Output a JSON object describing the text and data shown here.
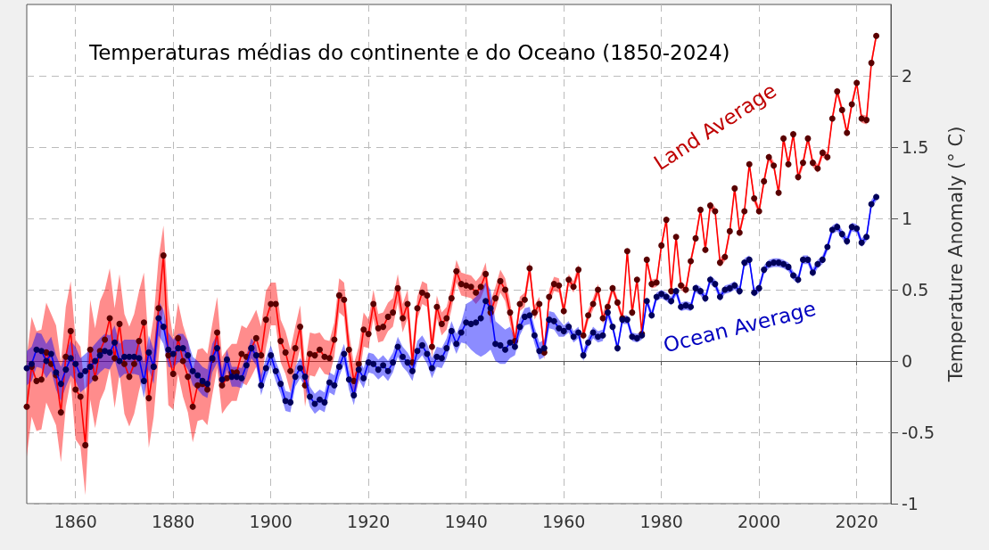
{
  "chart_data": {
    "type": "line",
    "title": "Temperaturas médias do continente e do Oceano (1850-2024)",
    "ylabel": "Temperature Anomaly (° C)",
    "x": [
      1850,
      1851,
      1852,
      1853,
      1854,
      1855,
      1856,
      1857,
      1858,
      1859,
      1860,
      1861,
      1862,
      1863,
      1864,
      1865,
      1866,
      1867,
      1868,
      1869,
      1870,
      1871,
      1872,
      1873,
      1874,
      1875,
      1876,
      1877,
      1878,
      1879,
      1880,
      1881,
      1882,
      1883,
      1884,
      1885,
      1886,
      1887,
      1888,
      1889,
      1890,
      1891,
      1892,
      1893,
      1894,
      1895,
      1896,
      1897,
      1898,
      1899,
      1900,
      1901,
      1902,
      1903,
      1904,
      1905,
      1906,
      1907,
      1908,
      1909,
      1910,
      1911,
      1912,
      1913,
      1914,
      1915,
      1916,
      1917,
      1918,
      1919,
      1920,
      1921,
      1922,
      1923,
      1924,
      1925,
      1926,
      1927,
      1928,
      1929,
      1930,
      1931,
      1932,
      1933,
      1934,
      1935,
      1936,
      1937,
      1938,
      1939,
      1940,
      1941,
      1942,
      1943,
      1944,
      1945,
      1946,
      1947,
      1948,
      1949,
      1950,
      1951,
      1952,
      1953,
      1954,
      1955,
      1956,
      1957,
      1958,
      1959,
      1960,
      1961,
      1962,
      1963,
      1964,
      1965,
      1966,
      1967,
      1968,
      1969,
      1970,
      1971,
      1972,
      1973,
      1974,
      1975,
      1976,
      1977,
      1978,
      1979,
      1980,
      1981,
      1982,
      1983,
      1984,
      1985,
      1986,
      1987,
      1988,
      1989,
      1990,
      1991,
      1992,
      1993,
      1994,
      1995,
      1996,
      1997,
      1998,
      1999,
      2000,
      2001,
      2002,
      2003,
      2004,
      2005,
      2006,
      2007,
      2008,
      2009,
      2010,
      2011,
      2012,
      2013,
      2014,
      2015,
      2016,
      2017,
      2018,
      2019,
      2020,
      2021,
      2022,
      2023,
      2024
    ],
    "series": [
      {
        "name": "Land Average",
        "color": "#ff0000",
        "values": [
          -0.32,
          -0.04,
          -0.14,
          -0.13,
          0.06,
          -0.02,
          -0.1,
          -0.36,
          0.03,
          0.21,
          -0.2,
          -0.25,
          -0.59,
          0.08,
          -0.12,
          0.07,
          0.15,
          0.3,
          0.02,
          0.26,
          -0.02,
          -0.11,
          -0.02,
          0.14,
          0.27,
          -0.26,
          -0.04,
          0.37,
          0.74,
          0.04,
          -0.09,
          0.16,
          0.0,
          -0.11,
          -0.32,
          -0.17,
          -0.16,
          -0.2,
          0.01,
          0.2,
          -0.17,
          -0.12,
          -0.08,
          -0.08,
          0.05,
          0.03,
          0.09,
          0.16,
          0.04,
          0.29,
          0.4,
          0.4,
          0.14,
          0.06,
          -0.07,
          0.09,
          0.24,
          -0.17,
          0.05,
          0.04,
          0.08,
          0.03,
          0.02,
          0.15,
          0.46,
          0.43,
          0.08,
          -0.14,
          -0.02,
          0.22,
          0.19,
          0.4,
          0.23,
          0.24,
          0.31,
          0.34,
          0.51,
          0.3,
          0.4,
          -0.01,
          0.37,
          0.48,
          0.46,
          0.1,
          0.38,
          0.26,
          0.3,
          0.44,
          0.63,
          0.54,
          0.53,
          0.52,
          0.48,
          0.52,
          0.61,
          0.34,
          0.44,
          0.56,
          0.5,
          0.34,
          0.14,
          0.4,
          0.43,
          0.65,
          0.34,
          0.4,
          0.06,
          0.45,
          0.54,
          0.53,
          0.35,
          0.57,
          0.52,
          0.64,
          0.18,
          0.32,
          0.4,
          0.5,
          0.3,
          0.38,
          0.51,
          0.41,
          0.3,
          0.77,
          0.34,
          0.57,
          0.19,
          0.71,
          0.54,
          0.55,
          0.81,
          0.99,
          0.49,
          0.87,
          0.53,
          0.5,
          0.7,
          0.86,
          1.06,
          0.78,
          1.09,
          1.05,
          0.69,
          0.73,
          0.91,
          1.21,
          0.9,
          1.05,
          1.38,
          1.14,
          1.05,
          1.26,
          1.43,
          1.37,
          1.18,
          1.56,
          1.38,
          1.59,
          1.29,
          1.39,
          1.56,
          1.39,
          1.35,
          1.46,
          1.43,
          1.7,
          1.89,
          1.76,
          1.6,
          1.8,
          1.95,
          1.7,
          1.69,
          2.09,
          2.28
        ],
        "lower": [
          -0.67,
          -0.39,
          -0.49,
          -0.48,
          -0.29,
          -0.37,
          -0.45,
          -0.71,
          -0.32,
          -0.14,
          -0.55,
          -0.6,
          -0.94,
          -0.27,
          -0.47,
          -0.28,
          -0.2,
          -0.05,
          -0.33,
          -0.09,
          -0.37,
          -0.46,
          -0.37,
          -0.21,
          -0.08,
          -0.61,
          -0.39,
          0.02,
          0.39,
          -0.31,
          -0.34,
          -0.09,
          -0.25,
          -0.36,
          -0.57,
          -0.42,
          -0.41,
          -0.45,
          -0.24,
          -0.05,
          -0.37,
          -0.32,
          -0.28,
          -0.28,
          -0.15,
          -0.17,
          -0.11,
          -0.04,
          -0.16,
          0.09,
          0.25,
          0.25,
          -0.01,
          -0.09,
          -0.22,
          -0.06,
          0.09,
          -0.32,
          -0.1,
          -0.11,
          -0.04,
          -0.09,
          -0.1,
          0.03,
          0.34,
          0.31,
          -0.04,
          -0.26,
          -0.14,
          0.1,
          0.09,
          0.3,
          0.13,
          0.14,
          0.21,
          0.24,
          0.41,
          0.2,
          0.3,
          -0.11,
          0.29,
          0.4,
          0.38,
          0.02,
          0.3,
          0.18,
          0.22,
          0.36,
          0.55,
          0.46,
          0.45,
          0.44,
          0.4,
          0.44,
          0.53,
          0.26,
          0.36,
          0.48,
          0.42,
          0.26,
          0.09,
          0.35,
          0.38,
          0.6,
          0.29,
          0.35,
          0.01,
          0.4,
          0.49,
          0.48,
          0.31,
          0.53,
          0.48,
          0.6,
          0.14,
          0.28,
          0.36,
          0.46,
          0.26,
          0.34,
          0.48,
          0.38,
          0.27,
          0.74,
          0.31,
          0.54,
          0.16,
          0.68,
          0.51,
          0.52,
          0.78,
          0.96,
          0.46,
          0.84,
          0.5,
          0.47,
          0.67,
          0.83,
          1.03,
          0.75,
          1.06,
          1.02,
          0.66,
          0.7,
          0.88,
          1.18,
          0.87,
          1.02,
          1.35,
          1.11,
          1.02,
          1.23,
          1.4,
          1.34,
          1.15,
          1.53,
          1.35,
          1.56,
          1.26,
          1.36,
          1.53,
          1.36,
          1.32,
          1.43,
          1.4,
          1.67,
          1.86,
          1.73,
          1.57,
          1.77,
          1.92,
          1.67,
          1.66,
          2.06,
          2.25
        ],
        "upper": [
          0.03,
          0.31,
          0.21,
          0.22,
          0.41,
          0.33,
          0.25,
          -0.01,
          0.38,
          0.56,
          0.15,
          0.1,
          -0.24,
          0.43,
          0.23,
          0.42,
          0.5,
          0.65,
          0.37,
          0.61,
          0.33,
          0.24,
          0.33,
          0.49,
          0.62,
          0.09,
          0.31,
          0.72,
          0.95,
          0.39,
          0.16,
          0.41,
          0.25,
          0.14,
          -0.07,
          0.08,
          0.09,
          0.05,
          0.26,
          0.45,
          0.03,
          0.08,
          0.12,
          0.12,
          0.25,
          0.23,
          0.29,
          0.36,
          0.24,
          0.49,
          0.55,
          0.55,
          0.29,
          0.21,
          0.08,
          0.24,
          0.39,
          -0.02,
          0.2,
          0.19,
          0.2,
          0.15,
          0.14,
          0.27,
          0.58,
          0.55,
          0.2,
          -0.02,
          0.1,
          0.34,
          0.29,
          0.5,
          0.33,
          0.34,
          0.41,
          0.44,
          0.61,
          0.4,
          0.5,
          0.09,
          0.45,
          0.56,
          0.54,
          0.18,
          0.46,
          0.34,
          0.38,
          0.52,
          0.71,
          0.62,
          0.61,
          0.6,
          0.56,
          0.6,
          0.69,
          0.42,
          0.52,
          0.64,
          0.58,
          0.42,
          0.19,
          0.45,
          0.48,
          0.7,
          0.39,
          0.45,
          0.11,
          0.5,
          0.59,
          0.58,
          0.39,
          0.61,
          0.56,
          0.68,
          0.22,
          0.36,
          0.44,
          0.54,
          0.34,
          0.42,
          0.54,
          0.44,
          0.33,
          0.8,
          0.37,
          0.6,
          0.22,
          0.74,
          0.57,
          0.58,
          0.84,
          1.02,
          0.52,
          0.9,
          0.56,
          0.53,
          0.73,
          0.89,
          1.09,
          0.81,
          1.12,
          1.08,
          0.72,
          0.76,
          0.94,
          1.24,
          0.93,
          1.08,
          1.41,
          1.17,
          1.08,
          1.29,
          1.46,
          1.4,
          1.21,
          1.59,
          1.41,
          1.62,
          1.32,
          1.42,
          1.59,
          1.42,
          1.38,
          1.49,
          1.46,
          1.73,
          1.92,
          1.79,
          1.63,
          1.83,
          1.98,
          1.73,
          1.72,
          2.12,
          2.31
        ]
      },
      {
        "name": "Ocean Average",
        "color": "#0000ff",
        "values": [
          -0.05,
          -0.02,
          0.08,
          0.07,
          0.0,
          0.05,
          -0.08,
          -0.16,
          -0.06,
          0.02,
          -0.02,
          -0.1,
          -0.07,
          -0.04,
          0.0,
          0.04,
          0.07,
          0.06,
          0.13,
          0.0,
          0.03,
          0.03,
          0.03,
          0.02,
          -0.14,
          0.06,
          -0.04,
          0.3,
          0.24,
          0.08,
          0.05,
          0.09,
          0.09,
          0.04,
          -0.07,
          -0.1,
          -0.14,
          -0.16,
          0.02,
          0.09,
          -0.13,
          0.01,
          -0.11,
          -0.11,
          -0.12,
          -0.03,
          0.09,
          0.04,
          -0.17,
          -0.05,
          0.04,
          -0.07,
          -0.16,
          -0.28,
          -0.29,
          -0.11,
          -0.05,
          -0.11,
          -0.25,
          -0.3,
          -0.27,
          -0.29,
          -0.15,
          -0.17,
          -0.04,
          0.05,
          -0.13,
          -0.24,
          -0.06,
          -0.12,
          -0.01,
          -0.02,
          -0.06,
          -0.03,
          -0.07,
          -0.01,
          0.1,
          0.03,
          -0.01,
          -0.07,
          0.07,
          0.11,
          0.05,
          -0.05,
          0.03,
          0.02,
          0.09,
          0.21,
          0.12,
          0.2,
          0.27,
          0.26,
          0.27,
          0.3,
          0.42,
          0.37,
          0.12,
          0.11,
          0.08,
          0.13,
          0.1,
          0.24,
          0.31,
          0.32,
          0.18,
          0.07,
          0.09,
          0.29,
          0.28,
          0.23,
          0.21,
          0.24,
          0.17,
          0.2,
          0.04,
          0.13,
          0.2,
          0.17,
          0.18,
          0.34,
          0.24,
          0.09,
          0.29,
          0.29,
          0.17,
          0.16,
          0.18,
          0.42,
          0.32,
          0.45,
          0.47,
          0.45,
          0.42,
          0.49,
          0.38,
          0.39,
          0.38,
          0.51,
          0.49,
          0.44,
          0.57,
          0.54,
          0.45,
          0.5,
          0.51,
          0.53,
          0.49,
          0.69,
          0.71,
          0.48,
          0.51,
          0.64,
          0.68,
          0.69,
          0.69,
          0.68,
          0.66,
          0.6,
          0.57,
          0.71,
          0.71,
          0.62,
          0.68,
          0.71,
          0.8,
          0.92,
          0.94,
          0.89,
          0.84,
          0.94,
          0.93,
          0.83,
          0.87,
          1.1,
          1.15
        ],
        "lower": [
          -0.17,
          -0.14,
          -0.04,
          -0.05,
          -0.12,
          -0.07,
          -0.2,
          -0.28,
          -0.18,
          -0.1,
          -0.14,
          -0.22,
          -0.19,
          -0.16,
          -0.12,
          -0.08,
          -0.05,
          -0.06,
          0.01,
          -0.12,
          -0.09,
          -0.09,
          -0.09,
          -0.1,
          -0.26,
          -0.06,
          -0.16,
          0.18,
          0.12,
          -0.04,
          -0.05,
          -0.01,
          -0.01,
          -0.06,
          -0.17,
          -0.2,
          -0.24,
          -0.26,
          -0.08,
          -0.01,
          -0.2,
          -0.06,
          -0.18,
          -0.18,
          -0.19,
          -0.1,
          0.02,
          -0.03,
          -0.24,
          -0.12,
          -0.03,
          -0.14,
          -0.23,
          -0.35,
          -0.36,
          -0.18,
          -0.12,
          -0.18,
          -0.32,
          -0.37,
          -0.34,
          -0.36,
          -0.22,
          -0.24,
          -0.11,
          -0.02,
          -0.2,
          -0.31,
          -0.13,
          -0.19,
          -0.08,
          -0.09,
          -0.13,
          -0.1,
          -0.14,
          -0.08,
          0.03,
          -0.04,
          -0.08,
          -0.14,
          0.0,
          0.04,
          -0.02,
          -0.12,
          -0.04,
          -0.05,
          0.02,
          0.14,
          0.05,
          0.13,
          0.12,
          0.08,
          0.05,
          0.03,
          0.05,
          0.08,
          0.0,
          -0.02,
          -0.02,
          0.02,
          0.04,
          0.18,
          0.25,
          0.26,
          0.12,
          0.01,
          0.03,
          0.23,
          0.22,
          0.17,
          0.17,
          0.2,
          0.13,
          0.16,
          0.0,
          0.09,
          0.16,
          0.13,
          0.14,
          0.3,
          0.21,
          0.06,
          0.26,
          0.26,
          0.14,
          0.13,
          0.15,
          0.39,
          0.29,
          0.42,
          0.44,
          0.42,
          0.39,
          0.46,
          0.35,
          0.36,
          0.35,
          0.48,
          0.46,
          0.41,
          0.54,
          0.51,
          0.42,
          0.47,
          0.48,
          0.5,
          0.46,
          0.66,
          0.68,
          0.45,
          0.48,
          0.61,
          0.65,
          0.66,
          0.66,
          0.65,
          0.63,
          0.57,
          0.54,
          0.68,
          0.68,
          0.59,
          0.65,
          0.68,
          0.77,
          0.89,
          0.91,
          0.86,
          0.81,
          0.91,
          0.9,
          0.8,
          0.84,
          1.07,
          1.12
        ],
        "upper": [
          0.07,
          0.1,
          0.2,
          0.19,
          0.12,
          0.17,
          0.04,
          -0.04,
          0.06,
          0.14,
          0.1,
          0.02,
          0.05,
          0.08,
          0.12,
          0.16,
          0.19,
          0.18,
          0.25,
          0.12,
          0.15,
          0.15,
          0.15,
          0.14,
          -0.02,
          0.18,
          0.08,
          0.42,
          0.36,
          0.2,
          0.15,
          0.19,
          0.19,
          0.14,
          0.03,
          0.0,
          -0.04,
          -0.06,
          0.12,
          0.19,
          -0.06,
          0.08,
          -0.04,
          -0.04,
          -0.05,
          0.04,
          0.16,
          0.11,
          -0.1,
          0.02,
          0.11,
          0.0,
          -0.09,
          -0.21,
          -0.22,
          -0.04,
          0.02,
          -0.04,
          -0.18,
          -0.23,
          -0.2,
          -0.22,
          -0.08,
          -0.1,
          0.03,
          0.12,
          -0.06,
          -0.17,
          0.01,
          -0.05,
          0.06,
          0.05,
          0.01,
          0.04,
          0.0,
          0.06,
          0.17,
          0.1,
          0.06,
          0.0,
          0.14,
          0.18,
          0.12,
          0.02,
          0.1,
          0.09,
          0.16,
          0.28,
          0.19,
          0.27,
          0.4,
          0.42,
          0.45,
          0.5,
          0.55,
          0.5,
          0.28,
          0.25,
          0.22,
          0.24,
          0.16,
          0.3,
          0.37,
          0.38,
          0.24,
          0.13,
          0.15,
          0.35,
          0.34,
          0.29,
          0.25,
          0.28,
          0.21,
          0.24,
          0.08,
          0.17,
          0.24,
          0.21,
          0.22,
          0.38,
          0.27,
          0.12,
          0.32,
          0.32,
          0.2,
          0.19,
          0.21,
          0.45,
          0.35,
          0.48,
          0.5,
          0.48,
          0.45,
          0.52,
          0.41,
          0.42,
          0.41,
          0.54,
          0.52,
          0.47,
          0.6,
          0.57,
          0.48,
          0.53,
          0.54,
          0.56,
          0.52,
          0.72,
          0.74,
          0.51,
          0.54,
          0.67,
          0.71,
          0.72,
          0.72,
          0.71,
          0.69,
          0.63,
          0.6,
          0.74,
          0.74,
          0.65,
          0.71,
          0.74,
          0.83,
          0.95,
          0.97,
          0.92,
          0.87,
          0.97,
          0.96,
          0.86,
          0.9,
          1.13,
          1.18
        ]
      }
    ],
    "xlim": [
      1850,
      2027
    ],
    "xticks": [
      1860,
      1880,
      1900,
      1920,
      1940,
      1960,
      1980,
      2000,
      2020
    ],
    "ylim": [
      -1,
      2.5
    ],
    "yticks": [
      -1,
      -0.5,
      0,
      0.5,
      1,
      1.5,
      2
    ],
    "grid": true,
    "marker": "circle",
    "line_style": "solid"
  }
}
